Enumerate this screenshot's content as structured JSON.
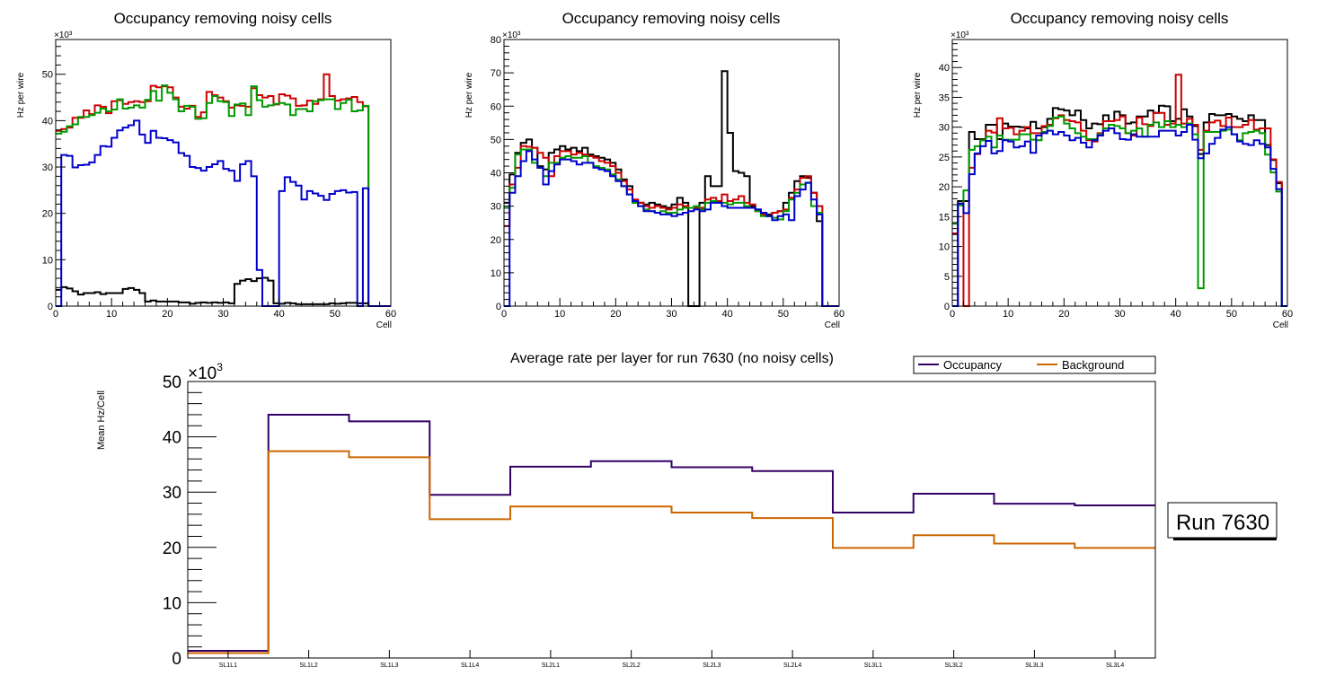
{
  "chart_data": [
    {
      "type": "histogram-step",
      "title": "Occupancy removing noisy cells",
      "xlabel": "Cell",
      "ylabel": "Hz per wire",
      "y_exponent_label": "×10³",
      "xlim": [
        0,
        60
      ],
      "ylim": [
        0,
        57.5
      ],
      "x_ticks": [
        0,
        10,
        20,
        30,
        40,
        50,
        60
      ],
      "y_ticks": [
        0,
        10,
        20,
        30,
        40,
        50
      ],
      "y_unit_multiplier": 1000,
      "series": [
        {
          "name": "black",
          "color": "#000000",
          "values": [
            3.5,
            4.1,
            3.8,
            3.2,
            2.5,
            2.8,
            2.8,
            3.0,
            2.6,
            2.8,
            2.8,
            2.8,
            3.7,
            3.9,
            3.5,
            2.8,
            1.0,
            1.2,
            1.0,
            1.0,
            1.0,
            1.0,
            0.8,
            0.8,
            0.5,
            0.7,
            0.8,
            0.7,
            0.8,
            0.7,
            0.8,
            0.6,
            4.8,
            5.5,
            5.8,
            5.4,
            6.0,
            6.1,
            5.5,
            0.6,
            0.5,
            0.7,
            0.6,
            0.4,
            0.4,
            0.4,
            0.4,
            0.4,
            0.4,
            0.6,
            0.5,
            0.6,
            0.7,
            0.7,
            0.6,
            0.6,
            0,
            0,
            0,
            0
          ]
        },
        {
          "name": "red",
          "color": "#cc0000",
          "values": [
            37.8,
            38.2,
            38.5,
            40.6,
            40.6,
            42.2,
            41.4,
            43.3,
            43.0,
            41.6,
            44.2,
            44.4,
            43.6,
            44.0,
            44.2,
            44.0,
            44.2,
            47.5,
            47.2,
            47.4,
            47.2,
            45.0,
            43.0,
            42.6,
            43.2,
            40.8,
            41.8,
            46.2,
            45.5,
            45.0,
            44.2,
            42.8,
            43.3,
            43.2,
            43.0,
            47.0,
            45.5,
            45.0,
            45.3,
            43.5,
            45.7,
            45.4,
            44.8,
            43.2,
            43.3,
            44.3,
            43.6,
            44.6,
            50.0,
            45.3,
            44.3,
            44.6,
            44.8,
            45.1,
            44.0,
            43.1,
            0,
            0,
            0,
            0
          ]
        },
        {
          "name": "green",
          "color": "#009900",
          "values": [
            37.2,
            37.6,
            38.8,
            39.2,
            40.8,
            40.8,
            41.2,
            41.7,
            42.6,
            42.0,
            42.4,
            44.6,
            42.6,
            42.8,
            43.3,
            42.8,
            44.5,
            46.4,
            44.3,
            47.6,
            46.0,
            44.6,
            42.0,
            43.2,
            43.0,
            40.4,
            40.5,
            43.8,
            45.3,
            44.2,
            44.0,
            41.0,
            43.5,
            43.7,
            41.2,
            47.4,
            44.4,
            43.0,
            43.3,
            43.6,
            43.8,
            43.5,
            41.2,
            42.5,
            42.5,
            42.0,
            44.2,
            44.4,
            44.6,
            44.6,
            42.5,
            43.8,
            44.5,
            42.0,
            42.2,
            43.2,
            0,
            0,
            0,
            0
          ]
        },
        {
          "name": "blue",
          "color": "#0000cc",
          "values": [
            0,
            32.6,
            32.4,
            29.9,
            30.4,
            30.5,
            31.0,
            32.6,
            34.5,
            34.4,
            36.3,
            37.9,
            38.5,
            39.0,
            40.0,
            37.0,
            35.2,
            37.8,
            36.3,
            36.2,
            35.8,
            35.3,
            33.0,
            32.4,
            30.0,
            29.8,
            29.2,
            30.0,
            30.6,
            31.3,
            29.6,
            29.2,
            27.0,
            30.6,
            31.3,
            28.0,
            7.8,
            0,
            0,
            0,
            24.8,
            27.8,
            26.8,
            26.0,
            23.0,
            24.8,
            24.3,
            23.8,
            22.9,
            24.2,
            24.8,
            25.0,
            24.5,
            24.6,
            0,
            25.4,
            0,
            0,
            0,
            0
          ]
        }
      ]
    },
    {
      "type": "histogram-step",
      "title": "Occupancy removing noisy cells",
      "xlabel": "Cell",
      "ylabel": "Hz per wire",
      "y_exponent_label": "×10³",
      "xlim": [
        0,
        60
      ],
      "ylim": [
        0,
        80
      ],
      "x_ticks": [
        0,
        10,
        20,
        30,
        40,
        50,
        60
      ],
      "y_ticks": [
        0,
        10,
        20,
        30,
        40,
        50,
        60,
        70,
        80
      ],
      "y_unit_multiplier": 1000,
      "series": [
        {
          "name": "black",
          "color": "#000000",
          "values": [
            31,
            39.5,
            46,
            49,
            50,
            47.5,
            42,
            41,
            46,
            47,
            48,
            47,
            47.5,
            46.5,
            47.5,
            45.5,
            45,
            44.5,
            44,
            43,
            41,
            38,
            36,
            31,
            31,
            30.5,
            31,
            30.5,
            30,
            29.5,
            30.5,
            32.5,
            31,
            0,
            0,
            31,
            39,
            36,
            36,
            70.5,
            52,
            40.5,
            40,
            39,
            30,
            29,
            28,
            27.5,
            28,
            28.5,
            31,
            34,
            37.5,
            39,
            38.5,
            34,
            25.5,
            0,
            0,
            0
          ]
        },
        {
          "name": "red",
          "color": "#cc0000",
          "values": [
            24,
            36.5,
            41.5,
            48,
            47.8,
            47.5,
            46,
            44.5,
            39,
            45,
            46.5,
            46.5,
            45.5,
            46,
            45.5,
            45,
            44.5,
            43.5,
            43,
            42,
            40,
            37.5,
            35,
            32,
            31,
            30,
            29.5,
            30,
            29.5,
            29,
            29.5,
            30.5,
            30,
            29.5,
            29.5,
            29.5,
            32,
            32.5,
            31.5,
            33.5,
            31.5,
            32,
            33,
            31,
            30.5,
            28.5,
            27.5,
            27,
            28,
            28.5,
            29,
            32.5,
            35,
            38.5,
            39,
            34,
            30,
            0,
            0,
            0
          ]
        },
        {
          "name": "green",
          "color": "#009900",
          "values": [
            29.5,
            35.5,
            45.5,
            47,
            47,
            43,
            41.5,
            39,
            43,
            43,
            44.5,
            45,
            44.5,
            44.5,
            45,
            43,
            42,
            41.5,
            41,
            39.5,
            38,
            36,
            33.5,
            31,
            30,
            29,
            28.5,
            28,
            28.5,
            28,
            28,
            29,
            29.5,
            29.5,
            30,
            29,
            31,
            31.5,
            31,
            31,
            30.5,
            31,
            31,
            30,
            29.5,
            28.5,
            27,
            27,
            26.5,
            26,
            28.5,
            32,
            34,
            36.5,
            37,
            30,
            28,
            0,
            0,
            0
          ]
        },
        {
          "name": "blue",
          "color": "#0000cc",
          "values": [
            0,
            34,
            39,
            43.5,
            46.5,
            44,
            41.5,
            36.5,
            40.5,
            42.5,
            44,
            44,
            43.5,
            42.5,
            43,
            43,
            41.5,
            41,
            40.5,
            39,
            37.5,
            36,
            33.5,
            31.5,
            30,
            28.5,
            28.5,
            28,
            27.5,
            27.5,
            27,
            27.5,
            28,
            28.5,
            29,
            28.5,
            29,
            31,
            31,
            30,
            29.5,
            29.5,
            29.5,
            29.5,
            29.5,
            29,
            28,
            27,
            25.8,
            27,
            27.5,
            25.8,
            33,
            35,
            37,
            32,
            27.5,
            0,
            0,
            0
          ]
        }
      ]
    },
    {
      "type": "histogram-step",
      "title": "Occupancy removing noisy cells",
      "xlabel": "Cell",
      "ylabel": "Hz per wire",
      "y_exponent_label": "×10³",
      "xlim": [
        0,
        60
      ],
      "ylim": [
        0,
        44.7
      ],
      "x_ticks": [
        0,
        10,
        20,
        30,
        40,
        50,
        60
      ],
      "y_ticks": [
        0,
        5,
        10,
        15,
        20,
        25,
        30,
        35,
        40
      ],
      "y_unit_multiplier": 1000,
      "series": [
        {
          "name": "black",
          "color": "#000000",
          "values": [
            0,
            17.6,
            17.6,
            29.2,
            28,
            28,
            30.4,
            30.4,
            28,
            30.6,
            30.1,
            30.1,
            30.0,
            29.8,
            30.9,
            29.8,
            30.0,
            31.4,
            33.2,
            33.0,
            32.8,
            32.0,
            32.8,
            31.2,
            29.8,
            30.6,
            30.5,
            32.0,
            31.0,
            32.6,
            32.0,
            30.6,
            30.8,
            31.8,
            31.8,
            32.8,
            32.4,
            33.6,
            33.5,
            31.0,
            31.4,
            33.0,
            31.8,
            30.2,
            25.5,
            30.8,
            32.2,
            32.0,
            32.0,
            32.2,
            31.8,
            31.4,
            31.0,
            32.0,
            31.2,
            31.2,
            27.0,
            24.5,
            20.6,
            0
          ]
        },
        {
          "name": "red",
          "color": "#cc0000",
          "values": [
            12.2,
            17.2,
            0,
            23.2,
            25.5,
            27.8,
            29.4,
            29.1,
            31.5,
            29.8,
            29.9,
            28.8,
            29.4,
            30.0,
            29.0,
            29.0,
            30.2,
            30.4,
            31.5,
            32.0,
            31.2,
            31.0,
            30.8,
            29.4,
            27.8,
            27.6,
            29.0,
            31.0,
            31.0,
            31.2,
            31.8,
            29.0,
            28.6,
            31.6,
            30.5,
            30.2,
            32.4,
            32.4,
            30.4,
            30.6,
            38.8,
            30.6,
            31.4,
            30.4,
            26.2,
            29.4,
            30.8,
            31.1,
            30.2,
            31.6,
            30.0,
            30.0,
            30.4,
            31.2,
            29.6,
            29.8,
            29.8,
            24.6,
            20.8,
            0
          ]
        },
        {
          "name": "green",
          "color": "#009900",
          "values": [
            13.8,
            16.9,
            19.4,
            26.2,
            26.8,
            27.8,
            28.4,
            26.6,
            28.6,
            27.9,
            27.9,
            27.9,
            28.8,
            28.8,
            27.9,
            27.8,
            29.2,
            30.2,
            31.6,
            31.8,
            30.6,
            29.8,
            29.0,
            28.4,
            28.0,
            28.0,
            28.8,
            29.8,
            30.4,
            30.2,
            29.8,
            29.0,
            29.4,
            29.8,
            28.4,
            30.4,
            30.8,
            30.0,
            31.0,
            30.0,
            30.4,
            30.0,
            30.6,
            28.8,
            3.0,
            29.2,
            29.2,
            29.2,
            29.4,
            29.6,
            28.8,
            27.8,
            29.0,
            29.2,
            29.4,
            29.0,
            25.4,
            22.4,
            19.2,
            0
          ]
        },
        {
          "name": "blue",
          "color": "#0000cc",
          "values": [
            0,
            17.2,
            15.6,
            22.1,
            25.6,
            26.8,
            27.7,
            25.6,
            26.0,
            27.8,
            27.6,
            26.6,
            26.8,
            27.6,
            25.7,
            28.6,
            29.0,
            29.4,
            28.8,
            29.2,
            28.6,
            27.8,
            28.2,
            27.4,
            26.6,
            27.8,
            28.6,
            29.4,
            29.8,
            29.0,
            28.0,
            27.9,
            28.8,
            28.4,
            28.4,
            28.4,
            28.4,
            29.4,
            29.4,
            29.4,
            28.6,
            29.2,
            30.4,
            27.9,
            24.8,
            25.6,
            27.2,
            28.2,
            29.6,
            30.0,
            28.8,
            27.6,
            27.2,
            27.0,
            27.8,
            27.2,
            26.6,
            23.0,
            19.6,
            0
          ]
        }
      ]
    },
    {
      "type": "histogram-step",
      "title": "Average rate per layer for run 7630 (no noisy cells)",
      "xlabel": "",
      "ylabel": "Mean Hz/Cell",
      "y_exponent_label": "×10",
      "y_exponent_sup": "3",
      "ylim": [
        0,
        50
      ],
      "y_ticks": [
        0,
        10,
        20,
        30,
        40,
        50
      ],
      "y_unit_multiplier": 1000,
      "categories": [
        "SL1L1",
        "SL1L2",
        "SL1L3",
        "SL1L4",
        "SL2L1",
        "SL2L2",
        "SL2L3",
        "SL2L4",
        "SL3L1",
        "SL3L2",
        "SL3L3",
        "SL3L4"
      ],
      "legend_position": "top-right",
      "series": [
        {
          "name": "Occupancy",
          "color": "#330066",
          "values": [
            1.3,
            44.0,
            42.8,
            29.5,
            34.6,
            35.6,
            34.5,
            33.8,
            26.3,
            29.7,
            27.9,
            27.6
          ]
        },
        {
          "name": "Background",
          "color": "#cc6600",
          "values": [
            0.9,
            37.4,
            36.3,
            25.1,
            27.4,
            27.4,
            26.3,
            25.3,
            19.9,
            22.2,
            20.7,
            19.9
          ]
        }
      ],
      "annotation": "Run 7630"
    }
  ]
}
